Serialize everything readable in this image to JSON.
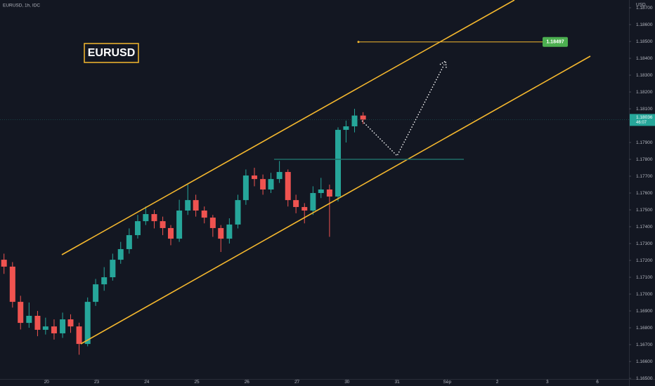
{
  "chart_data": {
    "type": "candlestick",
    "header": "EURUSD, 1h, IDC",
    "title": "EURUSD",
    "currency": "USD",
    "countdown": "46:07",
    "target": {
      "value": 1.18497
    },
    "up_color": "#26a69a",
    "down_color": "#ef5350",
    "x": [
      -0.85,
      -0.68,
      -0.52,
      -0.35,
      -0.18,
      -0.02,
      0.15,
      0.32,
      0.48,
      0.65,
      0.82,
      0.98,
      1.15,
      1.32,
      1.48,
      1.65,
      1.82,
      1.98,
      2.15,
      2.32,
      2.48,
      2.65,
      2.82,
      2.98,
      3.15,
      3.32,
      3.48,
      3.65,
      3.82,
      3.98,
      4.15,
      4.32,
      4.48,
      4.65,
      4.82,
      4.98,
      5.15,
      5.32,
      5.48,
      5.65,
      5.82,
      5.98,
      6.15,
      6.32
    ],
    "open": [
      1.17204,
      1.17163,
      1.16954,
      1.16829,
      1.16871,
      1.16788,
      1.16808,
      1.16767,
      1.1685,
      1.16808,
      1.16704,
      1.16954,
      1.17058,
      1.171,
      1.17204,
      1.17267,
      1.1735,
      1.17433,
      1.17475,
      1.17433,
      1.17392,
      1.17329,
      1.17496,
      1.17558,
      1.17496,
      1.17454,
      1.17392,
      1.17329,
      1.17413,
      1.17558,
      1.17704,
      1.17683,
      1.17621,
      1.17683,
      1.17725,
      1.17558,
      1.17517,
      1.17496,
      1.176,
      1.17621,
      1.17579,
      1.17975,
      1.17996,
      1.1806
    ],
    "high": [
      1.1724,
      1.1719,
      1.1699,
      1.1695,
      1.169,
      1.1686,
      1.1685,
      1.1689,
      1.1688,
      1.1683,
      1.1698,
      1.1709,
      1.1716,
      1.1724,
      1.1731,
      1.1739,
      1.1747,
      1.1752,
      1.175,
      1.1746,
      1.1741,
      1.1756,
      1.1765,
      1.1759,
      1.1752,
      1.1747,
      1.1741,
      1.1745,
      1.1759,
      1.1774,
      1.1775,
      1.1771,
      1.1772,
      1.1779,
      1.1774,
      1.1759,
      1.1754,
      1.1764,
      1.1769,
      1.1765,
      1.1799,
      1.1803,
      1.181,
      1.1808
    ],
    "low": [
      1.1712,
      1.1692,
      1.1679,
      1.168,
      1.1675,
      1.1676,
      1.1673,
      1.1674,
      1.1677,
      1.1664,
      1.1669,
      1.1693,
      1.1702,
      1.1708,
      1.1718,
      1.1724,
      1.1733,
      1.1741,
      1.1739,
      1.1735,
      1.1729,
      1.1731,
      1.1747,
      1.1746,
      1.1742,
      1.1734,
      1.1725,
      1.173,
      1.1739,
      1.1753,
      1.1764,
      1.1759,
      1.176,
      1.1766,
      1.1752,
      1.1748,
      1.1742,
      1.1747,
      1.1757,
      1.1734,
      1.1755,
      1.179,
      1.1796,
      1.1801
    ],
    "close": [
      1.17163,
      1.16954,
      1.16829,
      1.16871,
      1.16788,
      1.16808,
      1.16767,
      1.1685,
      1.16808,
      1.16704,
      1.16954,
      1.17058,
      1.171,
      1.17204,
      1.17267,
      1.1735,
      1.17433,
      1.17475,
      1.17433,
      1.17392,
      1.17329,
      1.17496,
      1.17558,
      1.17496,
      1.17454,
      1.17392,
      1.17329,
      1.17413,
      1.17558,
      1.17704,
      1.17683,
      1.17621,
      1.17683,
      1.17725,
      1.17558,
      1.17517,
      1.17496,
      1.176,
      1.17621,
      1.17579,
      1.17975,
      1.17996,
      1.1806,
      1.18036
    ],
    "xlim": [
      -0.93,
      11.63
    ],
    "ylim": [
      1.16496,
      1.18746
    ],
    "xticks": [
      {
        "value": 0,
        "label": "20"
      },
      {
        "value": 1,
        "label": "23"
      },
      {
        "value": 2,
        "label": "24"
      },
      {
        "value": 3,
        "label": "25"
      },
      {
        "value": 4,
        "label": "26"
      },
      {
        "value": 5,
        "label": "27"
      },
      {
        "value": 6,
        "label": "30"
      },
      {
        "value": 7,
        "label": "31"
      },
      {
        "value": 8,
        "label": "Sep"
      },
      {
        "value": 9,
        "label": "2"
      },
      {
        "value": 10,
        "label": "3"
      },
      {
        "value": 11,
        "label": "6"
      }
    ],
    "yticks": [
      {
        "value": 1.187,
        "label": "1.18700"
      },
      {
        "value": 1.186,
        "label": "1.18600"
      },
      {
        "value": 1.185,
        "label": "1.18500"
      },
      {
        "value": 1.184,
        "label": "1.18400"
      },
      {
        "value": 1.183,
        "label": "1.18300"
      },
      {
        "value": 1.182,
        "label": "1.18200"
      },
      {
        "value": 1.181,
        "label": "1.18100"
      },
      {
        "value": 1.179,
        "label": "1.17900"
      },
      {
        "value": 1.178,
        "label": "1.17800"
      },
      {
        "value": 1.177,
        "label": "1.17700"
      },
      {
        "value": 1.176,
        "label": "1.17600"
      },
      {
        "value": 1.175,
        "label": "1.17500"
      },
      {
        "value": 1.174,
        "label": "1.17400"
      },
      {
        "value": 1.173,
        "label": "1.17300"
      },
      {
        "value": 1.172,
        "label": "1.17200"
      },
      {
        "value": 1.171,
        "label": "1.17100"
      },
      {
        "value": 1.17,
        "label": "1.17000"
      },
      {
        "value": 1.169,
        "label": "1.16900"
      },
      {
        "value": 1.168,
        "label": "1.16800"
      },
      {
        "value": 1.167,
        "label": "1.16700"
      },
      {
        "value": 1.166,
        "label": "1.16600"
      },
      {
        "value": 1.165,
        "label": "1.16500"
      }
    ]
  }
}
